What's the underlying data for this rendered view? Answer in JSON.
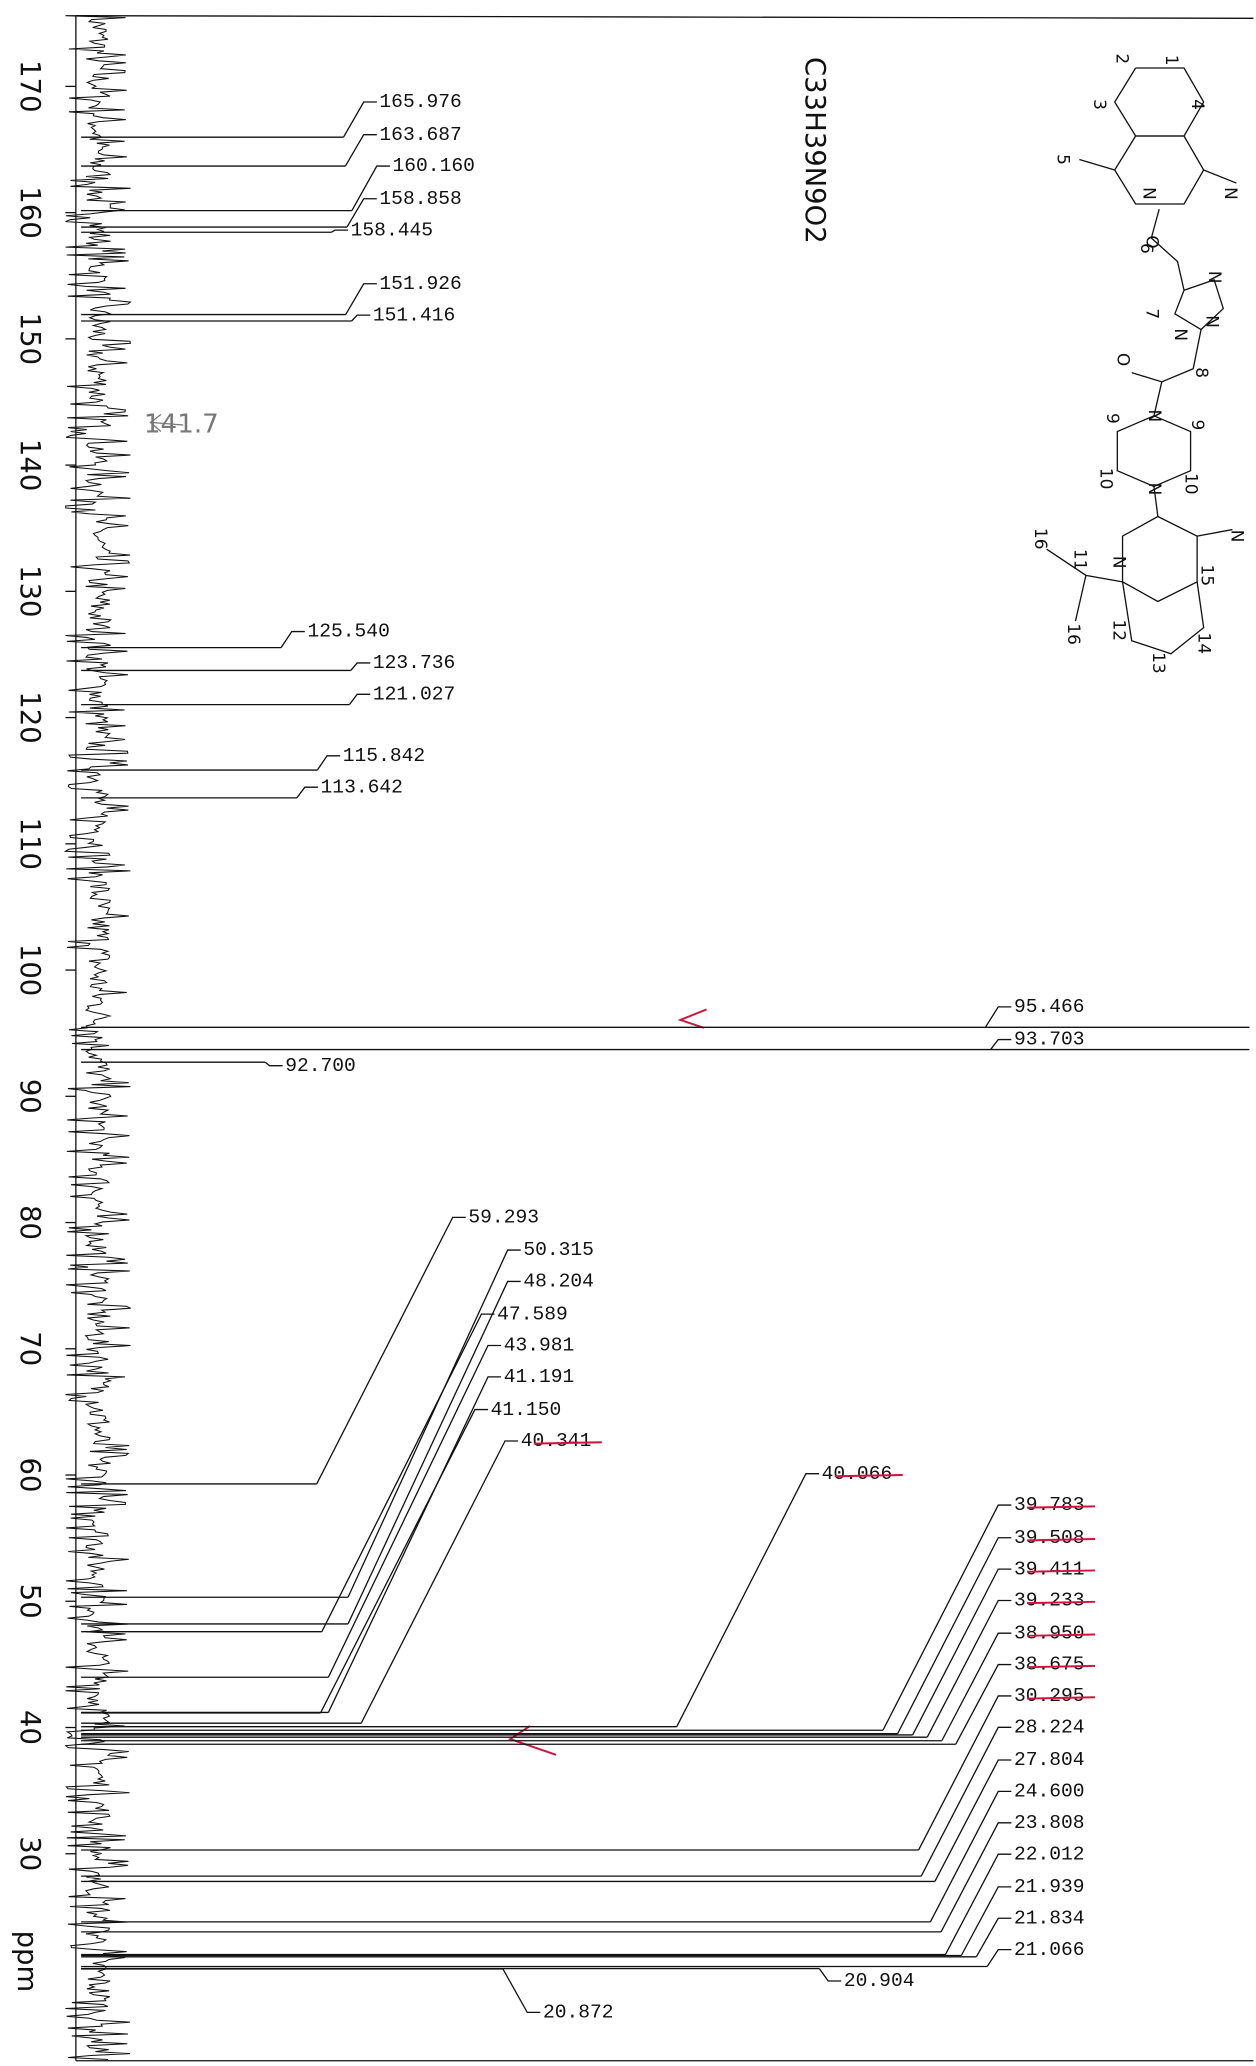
{
  "chart_data": {
    "type": "nmr",
    "y_label": "ppm",
    "ylim": [
      13.6,
      175.6
    ],
    "yticks": [
      170,
      160,
      150,
      140,
      130,
      120,
      110,
      100,
      90,
      80,
      70,
      60,
      50,
      40,
      30
    ],
    "peaks": [
      165.976,
      163.687,
      160.16,
      158.858,
      158.445,
      151.926,
      151.416,
      125.54,
      123.736,
      121.027,
      115.842,
      113.642,
      95.466,
      93.703,
      92.7,
      59.293,
      50.315,
      48.204,
      47.589,
      43.981,
      41.191,
      41.15,
      40.341,
      40.066,
      39.783,
      39.508,
      39.411,
      39.233,
      38.95,
      38.675,
      30.295,
      28.224,
      27.804,
      24.6,
      23.808,
      22.012,
      21.939,
      21.834,
      21.066,
      20.904,
      20.872
    ],
    "peak_labels": [
      "165.976",
      "163.687",
      "160.160",
      "158.858",
      "158.445",
      "151.926",
      "151.416",
      "125.540",
      "123.736",
      "121.027",
      "115.842",
      "113.642",
      "95.466",
      "93.703",
      "92.700",
      "59.293",
      "50.315",
      "48.204",
      "47.589",
      "43.981",
      "41.191",
      "41.150",
      "40.341",
      "40.066",
      "39.783",
      "39.508",
      "39.411",
      "39.233",
      "38.950",
      "38.675",
      "30.295",
      "28.224",
      "27.804",
      "24.600",
      "23.808",
      "22.012",
      "21.939",
      "21.834",
      "21.066",
      "20.904",
      "20.872"
    ],
    "annotation": "141.7",
    "line_color": "#111111",
    "mark_color": "#d2143c"
  },
  "structure": {
    "formula": "C33H39N9O2",
    "labels": [
      "1",
      "2",
      "3",
      "4",
      "5",
      "N",
      "O",
      "N",
      "6",
      "N",
      "N",
      "N",
      "7",
      "8",
      "O",
      "N",
      "9",
      "9",
      "N",
      "10",
      "10",
      "N",
      "N",
      "11",
      "16",
      "16",
      "12",
      "13",
      "14",
      "15"
    ]
  }
}
